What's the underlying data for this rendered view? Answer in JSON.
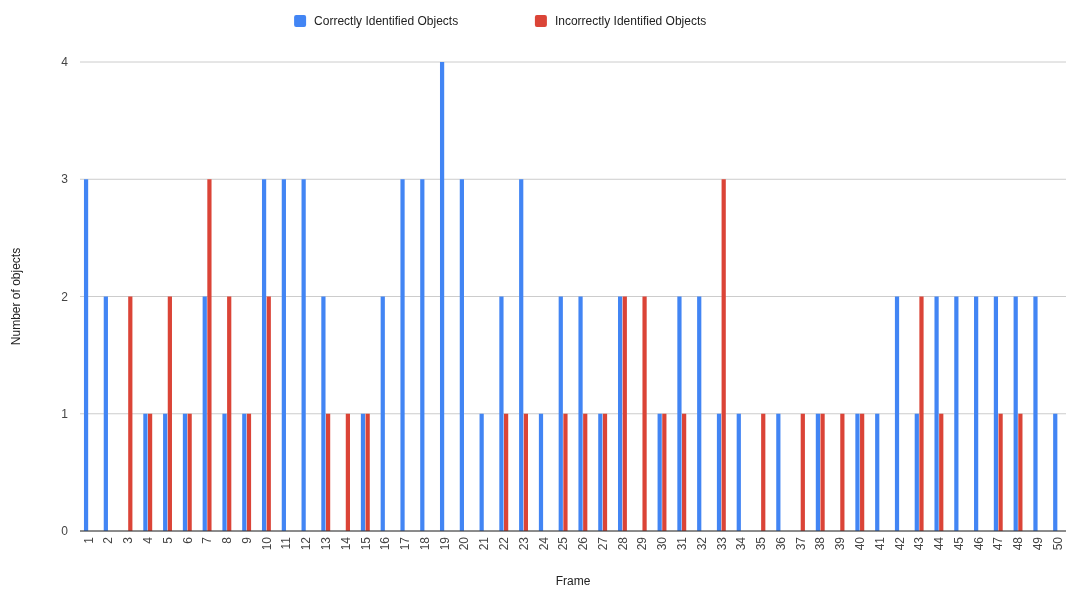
{
  "chart_data": {
    "type": "bar",
    "xlabel": "Frame",
    "ylabel": "Number of objects",
    "categories": [
      "1",
      "2",
      "3",
      "4",
      "5",
      "6",
      "7",
      "8",
      "9",
      "10",
      "11",
      "12",
      "13",
      "14",
      "15",
      "16",
      "17",
      "18",
      "19",
      "20",
      "21",
      "22",
      "23",
      "24",
      "25",
      "26",
      "27",
      "28",
      "29",
      "30",
      "31",
      "32",
      "33",
      "34",
      "35",
      "36",
      "37",
      "38",
      "39",
      "40",
      "41",
      "42",
      "43",
      "44",
      "45",
      "46",
      "47",
      "48",
      "49",
      "50"
    ],
    "series": [
      {
        "name": "Correctly Identified Objects",
        "color": "#4285f4",
        "values": [
          3,
          2,
          0,
          1,
          1,
          1,
          2,
          1,
          1,
          3,
          3,
          3,
          2,
          0,
          1,
          2,
          3,
          3,
          4,
          3,
          1,
          2,
          3,
          1,
          2,
          2,
          1,
          2,
          0,
          1,
          2,
          2,
          1,
          1,
          0,
          1,
          0,
          1,
          0,
          1,
          1,
          2,
          1,
          2,
          2,
          2,
          2,
          2,
          2,
          1
        ]
      },
      {
        "name": "Incorrectly Identified Objects",
        "color": "#db4437",
        "values": [
          0,
          0,
          2,
          1,
          2,
          1,
          3,
          2,
          1,
          2,
          0,
          0,
          1,
          1,
          1,
          0,
          0,
          0,
          0,
          0,
          0,
          1,
          1,
          0,
          1,
          1,
          1,
          2,
          2,
          1,
          1,
          0,
          3,
          0,
          1,
          0,
          1,
          1,
          1,
          1,
          0,
          0,
          2,
          1,
          0,
          0,
          1,
          1,
          0,
          0
        ]
      }
    ],
    "ylim": [
      0,
      4
    ],
    "yticks": [
      0,
      1,
      2,
      3,
      4
    ],
    "grid": "y",
    "legend": "top"
  }
}
